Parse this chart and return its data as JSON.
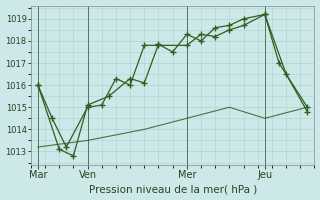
{
  "background_color": "#cce8e8",
  "grid_color": "#aacccc",
  "line_color": "#2d6020",
  "marker_color": "#2d6020",
  "xlabel": "Pression niveau de la mer( hPa )",
  "yticks": [
    1013,
    1014,
    1015,
    1016,
    1017,
    1018,
    1019
  ],
  "ylim": [
    1012.4,
    1019.6
  ],
  "xlim": [
    0,
    20
  ],
  "day_labels": [
    "Mar",
    "Ven",
    "Mer",
    "Jeu"
  ],
  "day_positions": [
    0.5,
    4.0,
    11.0,
    16.5
  ],
  "vline_positions": [
    0.5,
    4.0,
    11.0,
    16.5
  ],
  "series1_x": [
    0.5,
    1.5,
    2.5,
    4.0,
    5.0,
    6.0,
    7.0,
    8.0,
    9.0,
    11.0,
    12.0,
    13.0,
    14.0,
    15.0,
    16.5,
    17.5,
    19.5
  ],
  "series1_y": [
    1016.0,
    1014.5,
    1013.2,
    1015.0,
    1015.1,
    1016.3,
    1016.0,
    1017.8,
    1017.8,
    1017.8,
    1018.3,
    1018.2,
    1018.5,
    1018.7,
    1019.2,
    1017.0,
    1015.0
  ],
  "series2_x": [
    0.5,
    2.0,
    3.0,
    4.0,
    5.5,
    7.0,
    8.0,
    9.0,
    10.0,
    11.0,
    12.0,
    13.0,
    14.0,
    15.0,
    16.5,
    18.0,
    19.5
  ],
  "series2_y": [
    1016.0,
    1013.1,
    1012.8,
    1015.1,
    1015.5,
    1016.3,
    1016.1,
    1017.85,
    1017.5,
    1018.3,
    1018.0,
    1018.6,
    1018.7,
    1019.0,
    1019.2,
    1016.5,
    1014.8
  ],
  "series3_x": [
    0.5,
    4.0,
    8.0,
    11.0,
    14.0,
    16.5,
    19.5
  ],
  "series3_y": [
    1013.2,
    1013.5,
    1014.0,
    1014.5,
    1015.0,
    1014.5,
    1015.0
  ]
}
